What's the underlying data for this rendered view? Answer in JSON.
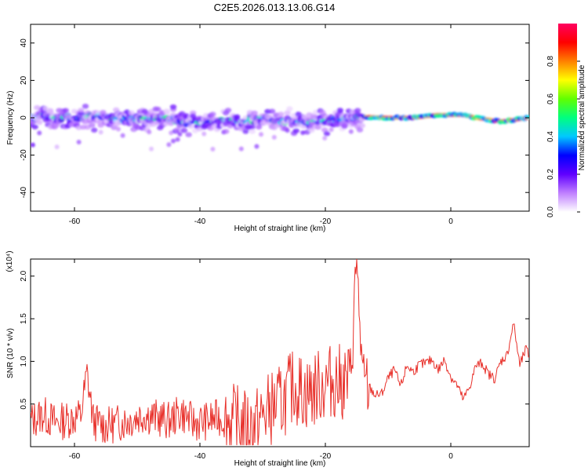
{
  "title": "C2E5.2026.013.13.06.G14",
  "chart_data": [
    {
      "type": "heatmap",
      "xlabel": "Height of straight line (km)",
      "ylabel": "Frequency (Hz)",
      "xlim": [
        -67,
        12.5
      ],
      "ylim": [
        -50,
        50
      ],
      "xticks": [
        -60,
        -40,
        -20,
        0
      ],
      "yticks": [
        -40,
        -20,
        0,
        20,
        40
      ],
      "colorbar": {
        "label": "Normalized spectral amplitude",
        "range": [
          0,
          1
        ],
        "ticks": [
          0.0,
          0.2,
          0.4,
          0.6,
          0.8
        ],
        "colormap": [
          "#ffffff",
          "#c080ff",
          "#6000ff",
          "#0000ff",
          "#00c8ff",
          "#00ff80",
          "#60ff00",
          "#ffff00",
          "#ff8000",
          "#ff0000",
          "#ff0060"
        ]
      },
      "ridge": [
        [
          -66,
          1
        ],
        [
          -62,
          0
        ],
        [
          -58,
          0.5
        ],
        [
          -54,
          0
        ],
        [
          -50,
          -1
        ],
        [
          -46,
          0
        ],
        [
          -42,
          -2.5
        ],
        [
          -38,
          -1.5
        ],
        [
          -34,
          -2
        ],
        [
          -30,
          -0.5
        ],
        [
          -26,
          -2
        ],
        [
          -22,
          -2
        ],
        [
          -18,
          -1
        ],
        [
          -14,
          0.5
        ],
        [
          -10,
          0
        ],
        [
          -6,
          0
        ],
        [
          -2,
          1.5
        ],
        [
          2,
          1.5
        ],
        [
          4,
          0
        ],
        [
          8,
          -2
        ],
        [
          12.5,
          0
        ]
      ]
    },
    {
      "type": "line",
      "xlabel": "Height of straight line (km)",
      "ylabel": "SNR (10 * v/v)",
      "yexponent": "(x10⁴)",
      "xlim": [
        -67,
        12.5
      ],
      "ylim": [
        0,
        2.2
      ],
      "xticks": [
        -60,
        -40,
        -20,
        0
      ],
      "yticks": [
        0.5,
        1.0,
        1.5,
        2.0
      ],
      "color": "#e8302a",
      "series": [
        {
          "x": [
            -67,
            -65,
            -63,
            -61,
            -59,
            -58,
            -57,
            -55,
            -53,
            -51,
            -49,
            -47,
            -45,
            -43,
            -41,
            -39,
            -37,
            -35,
            -33,
            -31,
            -29,
            -27,
            -25,
            -23,
            -21,
            -19,
            -17,
            -16,
            -15,
            -14,
            -13,
            -12,
            -11,
            -10,
            -9,
            -8,
            -7,
            -6,
            -5,
            -4,
            -3,
            -2,
            -1,
            0,
            1,
            2,
            3,
            4,
            5,
            6,
            7,
            8,
            9,
            10,
            11,
            12,
            12.5
          ],
          "y": [
            0.3,
            0.38,
            0.28,
            0.32,
            0.36,
            0.86,
            0.3,
            0.24,
            0.28,
            0.32,
            0.38,
            0.34,
            0.3,
            0.4,
            0.28,
            0.3,
            0.34,
            0.3,
            0.24,
            0.26,
            0.44,
            0.52,
            0.72,
            0.62,
            0.7,
            0.78,
            0.74,
            0.8,
            2.2,
            0.68,
            0.7,
            0.6,
            0.62,
            0.8,
            0.9,
            0.7,
            0.95,
            0.88,
            0.96,
            0.98,
            1.02,
            0.9,
            1.02,
            0.82,
            0.72,
            0.55,
            0.7,
            0.95,
            0.98,
            0.85,
            0.8,
            1.0,
            1.08,
            1.45,
            0.95,
            1.15,
            1.05
          ]
        }
      ]
    }
  ]
}
